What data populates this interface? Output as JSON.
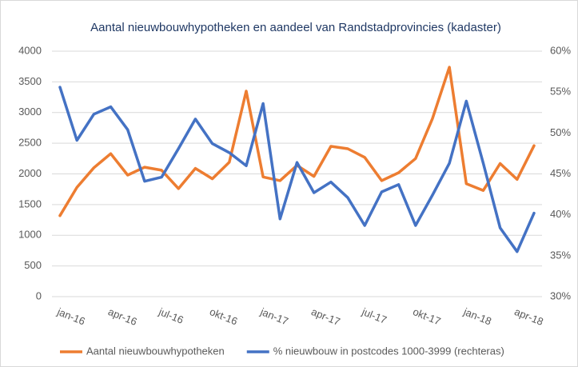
{
  "chart_data": {
    "type": "line",
    "title": "Aantal nieuwbouwhypotheken en aandeel van Randstadprovincies (kadaster)",
    "categories": [
      "jan-16",
      null,
      null,
      "apr-16",
      null,
      null,
      "jul-16",
      null,
      null,
      "okt-16",
      null,
      null,
      "jan-17",
      null,
      null,
      "apr-17",
      null,
      null,
      "jul-17",
      null,
      null,
      "okt-17",
      null,
      null,
      "jan-18",
      null,
      null,
      "apr-18",
      null
    ],
    "series": [
      {
        "name": "Aantal nieuwbouwhypotheken",
        "color": "#ed7d31",
        "values": [
          1320,
          1780,
          2100,
          2330,
          1980,
          2110,
          2060,
          1760,
          2090,
          1920,
          2190,
          3350,
          1950,
          1890,
          2140,
          1960,
          2450,
          2410,
          2270,
          1890,
          2020,
          2250,
          2900,
          3740,
          1840,
          1730,
          2170,
          1910,
          2460
        ]
      },
      {
        "name": "% nieuwbouw in postcodes 1000-3999 (rechteras)",
        "color": "#4472c4",
        "axis": "y2",
        "values": [
          55.6,
          49.1,
          52.3,
          53.2,
          50.4,
          44.1,
          44.6,
          48.1,
          51.7,
          48.7,
          47.6,
          46.0,
          53.6,
          39.5,
          46.4,
          42.7,
          44.0,
          42.1,
          38.7,
          42.8,
          43.7,
          38.7,
          42.4,
          46.3,
          53.9,
          46.3,
          38.4,
          35.5,
          40.2
        ]
      }
    ],
    "ylim": [
      0,
      4000
    ],
    "yticks": [
      0,
      500,
      1000,
      1500,
      2000,
      2500,
      3000,
      3500,
      4000
    ],
    "y2lim": [
      30,
      60
    ],
    "y2ticks": [
      {
        "value": 30,
        "label": "30%"
      },
      {
        "value": 35,
        "label": "35%"
      },
      {
        "value": 40,
        "label": "40%"
      },
      {
        "value": 45,
        "label": "45%"
      },
      {
        "value": 50,
        "label": "50%"
      },
      {
        "value": 55,
        "label": "55%"
      },
      {
        "value": 60,
        "label": "60%"
      }
    ],
    "grid": true,
    "legend": "bottom"
  }
}
